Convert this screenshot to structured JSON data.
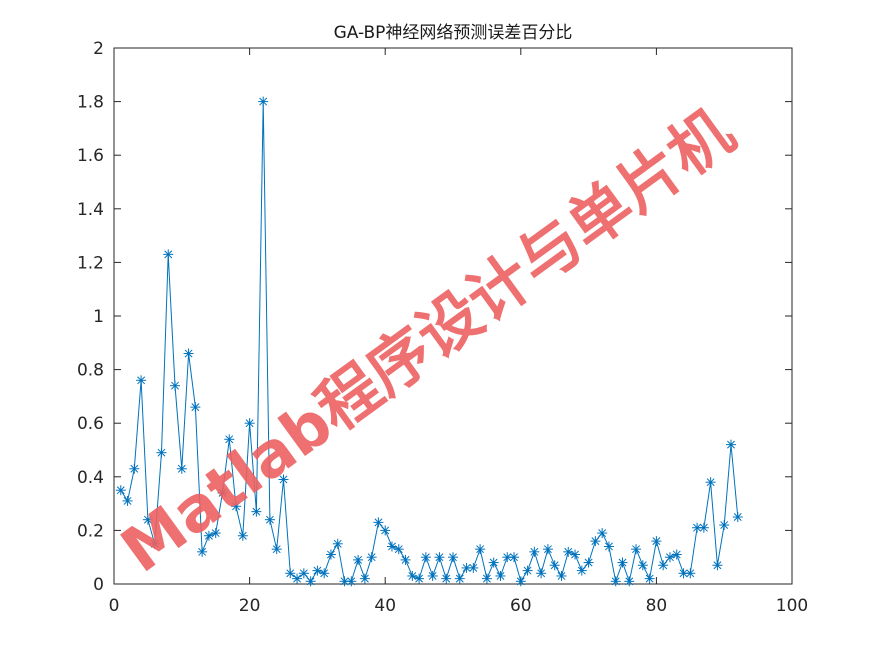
{
  "chart_data": {
    "type": "line",
    "title": "GA-BP神经网络预测误差百分比",
    "xlabel": "",
    "ylabel": "",
    "xlim": [
      0,
      100
    ],
    "ylim": [
      0,
      2
    ],
    "xticks": [
      0,
      20,
      40,
      60,
      80,
      100
    ],
    "yticks": [
      0,
      0.2,
      0.4,
      0.6,
      0.8,
      1,
      1.2,
      1.4,
      1.6,
      1.8,
      2
    ],
    "grid": false,
    "marker": "asterisk",
    "line_color": "#0072bd",
    "series": [
      {
        "x": [
          1,
          2,
          3,
          4,
          5,
          6,
          7,
          8,
          9,
          10,
          11,
          12,
          13,
          14,
          15,
          16,
          17,
          18,
          19,
          20,
          21,
          22,
          23,
          24,
          25,
          26,
          27,
          28,
          29,
          30,
          31,
          32,
          33,
          34,
          35,
          36,
          37,
          38,
          39,
          40,
          41,
          42,
          43,
          44,
          45,
          46,
          47,
          48,
          49,
          50,
          51,
          52,
          53,
          54,
          55,
          56,
          57,
          58,
          59,
          60,
          61,
          62,
          63,
          64,
          65,
          66,
          67,
          68,
          69,
          70,
          71,
          72,
          73,
          74,
          75,
          76,
          77,
          78,
          79,
          80,
          81,
          82,
          83,
          84,
          85,
          86,
          87,
          88,
          89,
          90,
          91,
          92
        ],
        "values": [
          0.35,
          0.31,
          0.43,
          0.76,
          0.24,
          0.15,
          0.49,
          1.23,
          0.74,
          0.43,
          0.86,
          0.66,
          0.12,
          0.18,
          0.19,
          0.34,
          0.54,
          0.29,
          0.18,
          0.6,
          0.27,
          1.8,
          0.24,
          0.13,
          0.39,
          0.04,
          0.02,
          0.04,
          0.01,
          0.05,
          0.04,
          0.11,
          0.15,
          0.01,
          0.01,
          0.09,
          0.02,
          0.1,
          0.23,
          0.2,
          0.14,
          0.13,
          0.09,
          0.03,
          0.02,
          0.1,
          0.03,
          0.1,
          0.02,
          0.1,
          0.02,
          0.06,
          0.06,
          0.13,
          0.02,
          0.08,
          0.03,
          0.1,
          0.1,
          0.01,
          0.05,
          0.12,
          0.04,
          0.13,
          0.07,
          0.03,
          0.12,
          0.11,
          0.05,
          0.08,
          0.16,
          0.19,
          0.14,
          0.01,
          0.08,
          0.01,
          0.13,
          0.07,
          0.02,
          0.16,
          0.07,
          0.1,
          0.11,
          0.04,
          0.04,
          0.21,
          0.21,
          0.38,
          0.07,
          0.22,
          0.52,
          0.25
        ]
      }
    ]
  },
  "watermark": {
    "text": "Matlab程序设计与单片机",
    "color": "#ec6161"
  }
}
